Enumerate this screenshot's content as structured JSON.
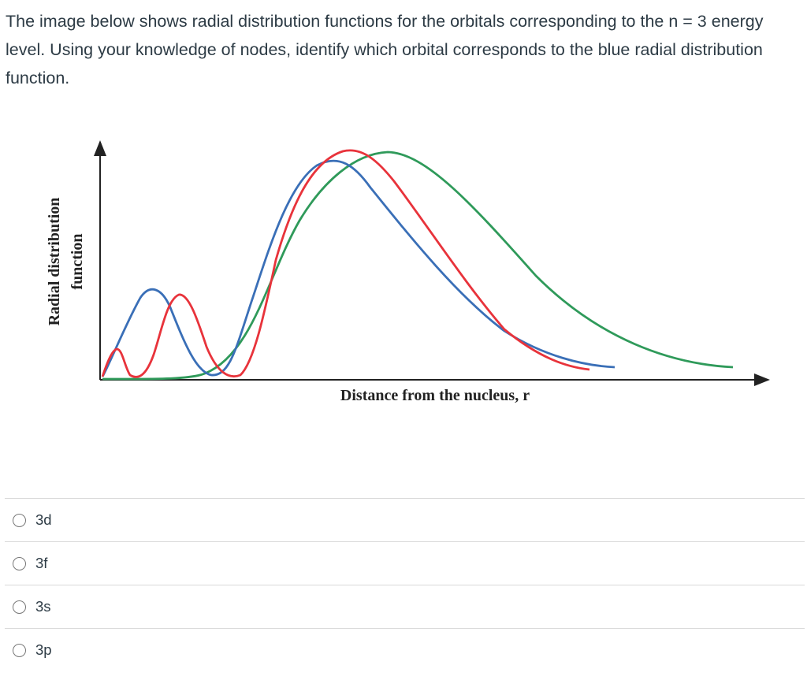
{
  "question": {
    "text": "The image below shows radial distribution functions for the orbitals corresponding to the n = 3 energy level. Using your knowledge of nodes, identify which orbital corresponds to the blue radial distribution function."
  },
  "figure": {
    "y_label_line1": "Radial distribution",
    "y_label_line2": "function",
    "x_label": "Distance from the nucleus, r",
    "colors": {
      "axis": "#222222",
      "blue": "#3a6fb7",
      "red": "#e8333b",
      "green": "#2f9a5a"
    }
  },
  "answers": [
    {
      "label": "3d"
    },
    {
      "label": "3f"
    },
    {
      "label": "3s"
    },
    {
      "label": "3p"
    }
  ]
}
